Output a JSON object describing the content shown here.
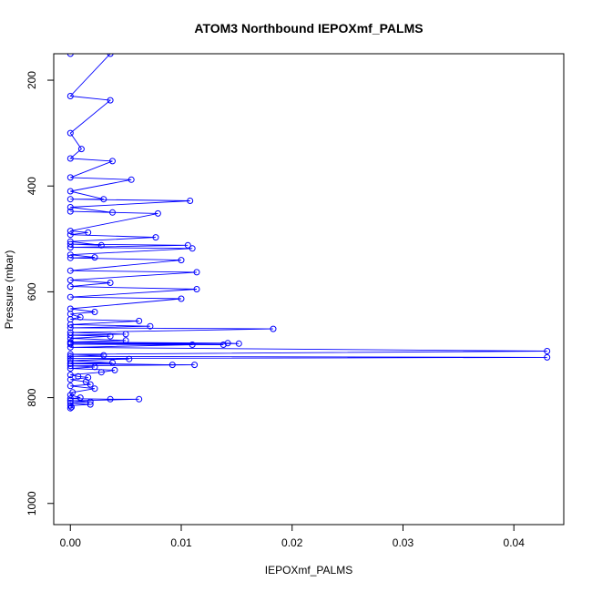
{
  "chart_data": {
    "type": "line",
    "title": "ATOM3 Northbound IEPOXmf_PALMS",
    "xlabel": "IEPOXmf_PALMS",
    "ylabel": "Pressure (mbar)",
    "xlim": [
      -0.0015,
      0.0445
    ],
    "ylim": [
      1040,
      150
    ],
    "y_reversed": true,
    "x_ticks": [
      0.0,
      0.01,
      0.02,
      0.03,
      0.04
    ],
    "x_tick_labels": [
      "0.00",
      "0.01",
      "0.02",
      "0.03",
      "0.04"
    ],
    "y_ticks": [
      200,
      400,
      600,
      800,
      1000
    ],
    "y_tick_labels": [
      "200",
      "400",
      "600",
      "800",
      "1000"
    ],
    "grid": false,
    "color": "#0000ff",
    "marker": "open-circle",
    "series": [
      {
        "points": [
          [
            0.0,
            820
          ],
          [
            0.0001,
            818
          ],
          [
            0.0,
            815
          ],
          [
            0.0018,
            813
          ],
          [
            0.0,
            810
          ],
          [
            0.0018,
            808
          ],
          [
            0.0,
            806
          ],
          [
            0.0062,
            803
          ],
          [
            0.0036,
            803
          ],
          [
            0.0,
            802
          ],
          [
            0.0009,
            800
          ],
          [
            0.0,
            795
          ],
          [
            0.0002,
            790
          ],
          [
            0.0022,
            783
          ],
          [
            0.0,
            778
          ],
          [
            0.0018,
            775
          ],
          [
            0.0014,
            770
          ],
          [
            0.0,
            766
          ],
          [
            0.0016,
            762
          ],
          [
            0.0007,
            760
          ],
          [
            0.0,
            757
          ],
          [
            0.0028,
            752
          ],
          [
            0.004,
            748
          ],
          [
            0.0,
            745
          ],
          [
            0.0022,
            742
          ],
          [
            0.0,
            740
          ],
          [
            0.0112,
            738
          ],
          [
            0.0,
            736
          ],
          [
            0.0092,
            738
          ],
          [
            0.0,
            735
          ],
          [
            0.0038,
            734
          ],
          [
            0.0,
            730
          ],
          [
            0.0053,
            727
          ],
          [
            0.0,
            726
          ],
          [
            0.043,
            724
          ],
          [
            0.0,
            722
          ],
          [
            0.003,
            720
          ],
          [
            0.0,
            718
          ],
          [
            0.043,
            712
          ],
          [
            0.0,
            705
          ],
          [
            0.011,
            700
          ],
          [
            0.0,
            699
          ],
          [
            0.0138,
            700
          ],
          [
            0.0,
            697
          ],
          [
            0.0152,
            698
          ],
          [
            0.0142,
            697
          ],
          [
            0.0,
            695
          ],
          [
            0.005,
            692
          ],
          [
            0.0,
            688
          ],
          [
            0.0036,
            684
          ],
          [
            0.0,
            682
          ],
          [
            0.005,
            680
          ],
          [
            0.0,
            677
          ],
          [
            0.0183,
            670
          ],
          [
            0.0,
            668
          ],
          [
            0.0072,
            665
          ],
          [
            0.0,
            662
          ],
          [
            0.0062,
            655
          ],
          [
            0.0,
            652
          ],
          [
            0.0009,
            648
          ],
          [
            0.0,
            642
          ],
          [
            0.0022,
            638
          ],
          [
            0.0,
            632
          ],
          [
            0.01,
            613
          ],
          [
            0.0,
            610
          ],
          [
            0.0114,
            595
          ],
          [
            0.0,
            590
          ],
          [
            0.0036,
            583
          ],
          [
            0.0,
            578
          ],
          [
            0.0114,
            563
          ],
          [
            0.0,
            560
          ],
          [
            0.01,
            540
          ],
          [
            0.0,
            536
          ],
          [
            0.0022,
            535
          ],
          [
            0.0,
            530
          ],
          [
            0.011,
            518
          ],
          [
            0.0,
            516
          ],
          [
            0.0106,
            512
          ],
          [
            0.0,
            510
          ],
          [
            0.0028,
            512
          ],
          [
            0.0,
            505
          ],
          [
            0.0077,
            497
          ],
          [
            0.0,
            492
          ],
          [
            0.0016,
            488
          ],
          [
            0.0,
            485
          ],
          [
            0.0079,
            452
          ],
          [
            0.0,
            448
          ],
          [
            0.0038,
            450
          ],
          [
            0.0,
            440
          ],
          [
            0.0108,
            428
          ],
          [
            0.0,
            425
          ],
          [
            0.003,
            425
          ],
          [
            0.0,
            410
          ],
          [
            0.0055,
            388
          ],
          [
            0.0,
            384
          ],
          [
            0.0038,
            353
          ],
          [
            0.0,
            348
          ],
          [
            0.001,
            330
          ],
          [
            0.0,
            300
          ],
          [
            0.0036,
            238
          ],
          [
            0.0,
            230
          ],
          [
            0.0036,
            150
          ],
          [
            0.0,
            150
          ]
        ]
      }
    ]
  }
}
